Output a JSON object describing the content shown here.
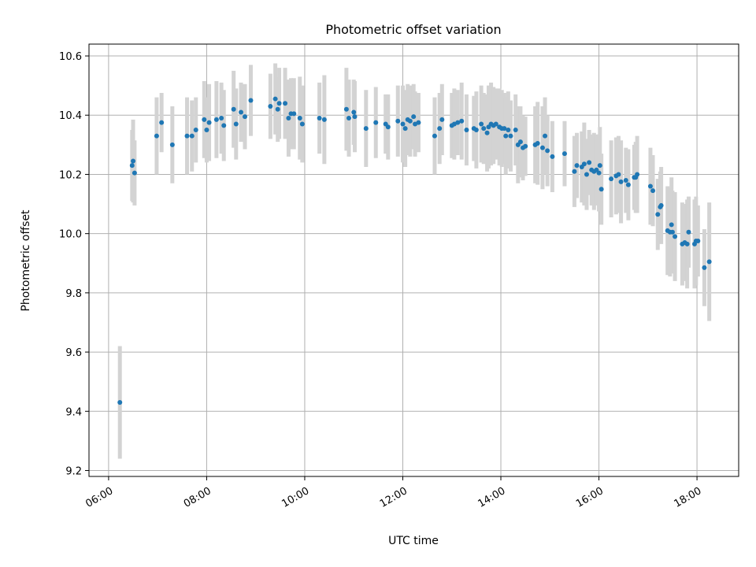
{
  "chart_data": {
    "type": "scatter",
    "title": "Photometric offset variation",
    "xlabel": "UTC time",
    "ylabel": "Photometric offset",
    "x_unit": "hours UTC",
    "xlim": [
      5.6,
      18.85
    ],
    "ylim": [
      9.18,
      10.64
    ],
    "xticks": [
      6,
      8,
      10,
      12,
      14,
      16,
      18
    ],
    "xtick_labels": [
      "06:00",
      "08:00",
      "10:00",
      "12:00",
      "14:00",
      "16:00",
      "18:00"
    ],
    "yticks": [
      9.2,
      9.4,
      9.6,
      9.8,
      10.0,
      10.2,
      10.4,
      10.6
    ],
    "ytick_labels": [
      "9.2",
      "9.4",
      "9.6",
      "9.8",
      "10.0",
      "10.2",
      "10.4",
      "10.6"
    ],
    "grid": true,
    "colors": {
      "marker": "#1f77b4",
      "errorbar": "#d3d3d3"
    },
    "points": [
      [
        6.23,
        9.43,
        0.19
      ],
      [
        6.48,
        10.23,
        0.12
      ],
      [
        6.5,
        10.245,
        0.14
      ],
      [
        6.53,
        10.205,
        0.11
      ],
      [
        6.98,
        10.33,
        0.13
      ],
      [
        7.08,
        10.375,
        0.1
      ],
      [
        7.3,
        10.3,
        0.13
      ],
      [
        7.6,
        10.33,
        0.13
      ],
      [
        7.7,
        10.33,
        0.12
      ],
      [
        7.78,
        10.35,
        0.11
      ],
      [
        7.95,
        10.385,
        0.13
      ],
      [
        8.0,
        10.35,
        0.11
      ],
      [
        8.05,
        10.375,
        0.13
      ],
      [
        8.2,
        10.385,
        0.13
      ],
      [
        8.3,
        10.39,
        0.12
      ],
      [
        8.35,
        10.365,
        0.12
      ],
      [
        8.55,
        10.42,
        0.13
      ],
      [
        8.6,
        10.37,
        0.12
      ],
      [
        8.7,
        10.41,
        0.1
      ],
      [
        8.78,
        10.395,
        0.11
      ],
      [
        8.9,
        10.45,
        0.12
      ],
      [
        9.3,
        10.43,
        0.11
      ],
      [
        9.4,
        10.455,
        0.12
      ],
      [
        9.45,
        10.42,
        0.11
      ],
      [
        9.48,
        10.44,
        0.12
      ],
      [
        9.6,
        10.44,
        0.12
      ],
      [
        9.67,
        10.39,
        0.13
      ],
      [
        9.72,
        10.405,
        0.12
      ],
      [
        9.78,
        10.405,
        0.12
      ],
      [
        9.9,
        10.39,
        0.14
      ],
      [
        9.95,
        10.37,
        0.13
      ],
      [
        10.3,
        10.39,
        0.12
      ],
      [
        10.4,
        10.385,
        0.15
      ],
      [
        10.85,
        10.42,
        0.14
      ],
      [
        10.9,
        10.39,
        0.13
      ],
      [
        11.0,
        10.41,
        0.11
      ],
      [
        11.02,
        10.395,
        0.12
      ],
      [
        11.25,
        10.355,
        0.13
      ],
      [
        11.45,
        10.375,
        0.12
      ],
      [
        11.65,
        10.37,
        0.1
      ],
      [
        11.7,
        10.36,
        0.11
      ],
      [
        11.9,
        10.38,
        0.12
      ],
      [
        12.0,
        10.37,
        0.13
      ],
      [
        12.05,
        10.355,
        0.13
      ],
      [
        12.1,
        10.385,
        0.12
      ],
      [
        12.15,
        10.38,
        0.12
      ],
      [
        12.22,
        10.395,
        0.11
      ],
      [
        12.25,
        10.37,
        0.11
      ],
      [
        12.32,
        10.375,
        0.1
      ],
      [
        12.65,
        10.33,
        0.13
      ],
      [
        12.75,
        10.355,
        0.12
      ],
      [
        12.8,
        10.385,
        0.12
      ],
      [
        13.0,
        10.365,
        0.11
      ],
      [
        13.05,
        10.37,
        0.12
      ],
      [
        13.12,
        10.375,
        0.11
      ],
      [
        13.2,
        10.38,
        0.13
      ],
      [
        13.3,
        10.35,
        0.12
      ],
      [
        13.45,
        10.355,
        0.11
      ],
      [
        13.5,
        10.35,
        0.13
      ],
      [
        13.6,
        10.37,
        0.13
      ],
      [
        13.65,
        10.355,
        0.12
      ],
      [
        13.72,
        10.34,
        0.13
      ],
      [
        13.75,
        10.36,
        0.14
      ],
      [
        13.8,
        10.37,
        0.14
      ],
      [
        13.85,
        10.365,
        0.13
      ],
      [
        13.9,
        10.37,
        0.12
      ],
      [
        13.97,
        10.36,
        0.13
      ],
      [
        14.02,
        10.355,
        0.13
      ],
      [
        14.07,
        10.355,
        0.12
      ],
      [
        14.1,
        10.33,
        0.13
      ],
      [
        14.15,
        10.35,
        0.13
      ],
      [
        14.2,
        10.33,
        0.12
      ],
      [
        14.3,
        10.35,
        0.12
      ],
      [
        14.35,
        10.3,
        0.13
      ],
      [
        14.4,
        10.31,
        0.12
      ],
      [
        14.45,
        10.29,
        0.11
      ],
      [
        14.5,
        10.295,
        0.1
      ],
      [
        14.7,
        10.3,
        0.13
      ],
      [
        14.75,
        10.305,
        0.14
      ],
      [
        14.85,
        10.29,
        0.14
      ],
      [
        14.9,
        10.33,
        0.13
      ],
      [
        14.95,
        10.28,
        0.12
      ],
      [
        15.05,
        10.26,
        0.12
      ],
      [
        15.3,
        10.27,
        0.11
      ],
      [
        15.5,
        10.21,
        0.12
      ],
      [
        15.55,
        10.23,
        0.11
      ],
      [
        15.65,
        10.225,
        0.12
      ],
      [
        15.7,
        10.235,
        0.14
      ],
      [
        15.75,
        10.2,
        0.12
      ],
      [
        15.8,
        10.24,
        0.11
      ],
      [
        15.85,
        10.215,
        0.12
      ],
      [
        15.9,
        10.21,
        0.13
      ],
      [
        15.95,
        10.215,
        0.12
      ],
      [
        16.0,
        10.205,
        0.13
      ],
      [
        16.02,
        10.23,
        0.13
      ],
      [
        16.05,
        10.15,
        0.12
      ],
      [
        16.25,
        10.185,
        0.13
      ],
      [
        16.35,
        10.195,
        0.13
      ],
      [
        16.4,
        10.2,
        0.13
      ],
      [
        16.45,
        10.175,
        0.14
      ],
      [
        16.55,
        10.18,
        0.11
      ],
      [
        16.6,
        10.165,
        0.12
      ],
      [
        16.72,
        10.19,
        0.11
      ],
      [
        16.75,
        10.19,
        0.12
      ],
      [
        16.78,
        10.2,
        0.13
      ],
      [
        17.05,
        10.16,
        0.13
      ],
      [
        17.1,
        10.145,
        0.12
      ],
      [
        17.2,
        10.065,
        0.12
      ],
      [
        17.25,
        10.09,
        0.12
      ],
      [
        17.27,
        10.095,
        0.13
      ],
      [
        17.4,
        10.01,
        0.15
      ],
      [
        17.45,
        10.005,
        0.15
      ],
      [
        17.48,
        10.03,
        0.16
      ],
      [
        17.5,
        10.005,
        0.14
      ],
      [
        17.55,
        9.99,
        0.15
      ],
      [
        17.7,
        9.965,
        0.14
      ],
      [
        17.75,
        9.97,
        0.13
      ],
      [
        17.8,
        9.965,
        0.15
      ],
      [
        17.83,
        10.005,
        0.12
      ],
      [
        17.95,
        9.965,
        0.15
      ],
      [
        17.98,
        9.975,
        0.15
      ],
      [
        18.02,
        9.975,
        0.12
      ],
      [
        18.15,
        9.885,
        0.13
      ],
      [
        18.25,
        9.905,
        0.2
      ]
    ]
  }
}
